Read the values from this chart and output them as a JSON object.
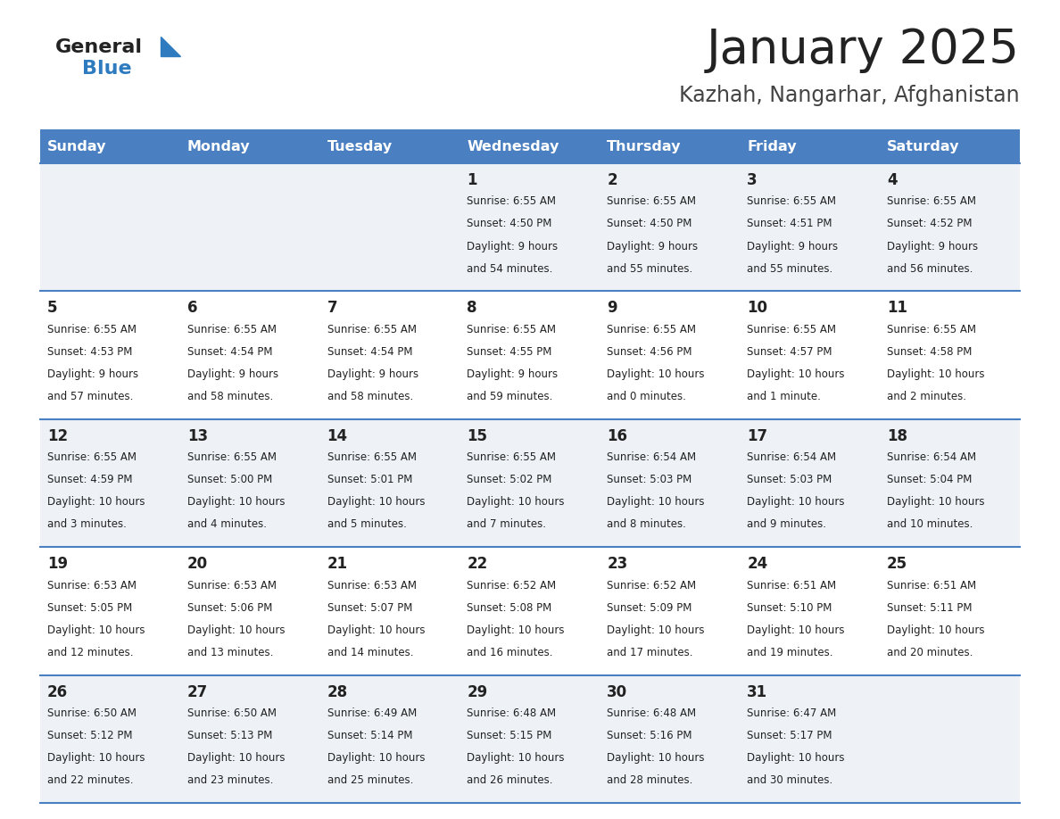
{
  "title": "January 2025",
  "subtitle": "Kazhah, Nangarhar, Afghanistan",
  "days_of_week": [
    "Sunday",
    "Monday",
    "Tuesday",
    "Wednesday",
    "Thursday",
    "Friday",
    "Saturday"
  ],
  "header_bg": "#4a7fc1",
  "header_text": "#ffffff",
  "row_bg_light": "#eef2f7",
  "row_bg_white": "#ffffff",
  "divider_color": "#4a7fc1",
  "title_color": "#222222",
  "subtitle_color": "#444444",
  "cell_text_color": "#222222",
  "day_number_color": "#222222",
  "logo_text_color": "#222222",
  "logo_blue_color": "#2e7bbf",
  "logo_triangle_color": "#2e7bbf",
  "calendar_data": [
    {
      "day": 1,
      "col": 3,
      "row": 0,
      "sunrise": "6:55 AM",
      "sunset": "4:50 PM",
      "daylight_hrs": 9,
      "daylight_min": "54 minutes."
    },
    {
      "day": 2,
      "col": 4,
      "row": 0,
      "sunrise": "6:55 AM",
      "sunset": "4:50 PM",
      "daylight_hrs": 9,
      "daylight_min": "55 minutes."
    },
    {
      "day": 3,
      "col": 5,
      "row": 0,
      "sunrise": "6:55 AM",
      "sunset": "4:51 PM",
      "daylight_hrs": 9,
      "daylight_min": "55 minutes."
    },
    {
      "day": 4,
      "col": 6,
      "row": 0,
      "sunrise": "6:55 AM",
      "sunset": "4:52 PM",
      "daylight_hrs": 9,
      "daylight_min": "56 minutes."
    },
    {
      "day": 5,
      "col": 0,
      "row": 1,
      "sunrise": "6:55 AM",
      "sunset": "4:53 PM",
      "daylight_hrs": 9,
      "daylight_min": "57 minutes."
    },
    {
      "day": 6,
      "col": 1,
      "row": 1,
      "sunrise": "6:55 AM",
      "sunset": "4:54 PM",
      "daylight_hrs": 9,
      "daylight_min": "58 minutes."
    },
    {
      "day": 7,
      "col": 2,
      "row": 1,
      "sunrise": "6:55 AM",
      "sunset": "4:54 PM",
      "daylight_hrs": 9,
      "daylight_min": "58 minutes."
    },
    {
      "day": 8,
      "col": 3,
      "row": 1,
      "sunrise": "6:55 AM",
      "sunset": "4:55 PM",
      "daylight_hrs": 9,
      "daylight_min": "59 minutes."
    },
    {
      "day": 9,
      "col": 4,
      "row": 1,
      "sunrise": "6:55 AM",
      "sunset": "4:56 PM",
      "daylight_hrs": 10,
      "daylight_min": "0 minutes."
    },
    {
      "day": 10,
      "col": 5,
      "row": 1,
      "sunrise": "6:55 AM",
      "sunset": "4:57 PM",
      "daylight_hrs": 10,
      "daylight_min": "1 minute."
    },
    {
      "day": 11,
      "col": 6,
      "row": 1,
      "sunrise": "6:55 AM",
      "sunset": "4:58 PM",
      "daylight_hrs": 10,
      "daylight_min": "2 minutes."
    },
    {
      "day": 12,
      "col": 0,
      "row": 2,
      "sunrise": "6:55 AM",
      "sunset": "4:59 PM",
      "daylight_hrs": 10,
      "daylight_min": "3 minutes."
    },
    {
      "day": 13,
      "col": 1,
      "row": 2,
      "sunrise": "6:55 AM",
      "sunset": "5:00 PM",
      "daylight_hrs": 10,
      "daylight_min": "4 minutes."
    },
    {
      "day": 14,
      "col": 2,
      "row": 2,
      "sunrise": "6:55 AM",
      "sunset": "5:01 PM",
      "daylight_hrs": 10,
      "daylight_min": "5 minutes."
    },
    {
      "day": 15,
      "col": 3,
      "row": 2,
      "sunrise": "6:55 AM",
      "sunset": "5:02 PM",
      "daylight_hrs": 10,
      "daylight_min": "7 minutes."
    },
    {
      "day": 16,
      "col": 4,
      "row": 2,
      "sunrise": "6:54 AM",
      "sunset": "5:03 PM",
      "daylight_hrs": 10,
      "daylight_min": "8 minutes."
    },
    {
      "day": 17,
      "col": 5,
      "row": 2,
      "sunrise": "6:54 AM",
      "sunset": "5:03 PM",
      "daylight_hrs": 10,
      "daylight_min": "9 minutes."
    },
    {
      "day": 18,
      "col": 6,
      "row": 2,
      "sunrise": "6:54 AM",
      "sunset": "5:04 PM",
      "daylight_hrs": 10,
      "daylight_min": "10 minutes."
    },
    {
      "day": 19,
      "col": 0,
      "row": 3,
      "sunrise": "6:53 AM",
      "sunset": "5:05 PM",
      "daylight_hrs": 10,
      "daylight_min": "12 minutes."
    },
    {
      "day": 20,
      "col": 1,
      "row": 3,
      "sunrise": "6:53 AM",
      "sunset": "5:06 PM",
      "daylight_hrs": 10,
      "daylight_min": "13 minutes."
    },
    {
      "day": 21,
      "col": 2,
      "row": 3,
      "sunrise": "6:53 AM",
      "sunset": "5:07 PM",
      "daylight_hrs": 10,
      "daylight_min": "14 minutes."
    },
    {
      "day": 22,
      "col": 3,
      "row": 3,
      "sunrise": "6:52 AM",
      "sunset": "5:08 PM",
      "daylight_hrs": 10,
      "daylight_min": "16 minutes."
    },
    {
      "day": 23,
      "col": 4,
      "row": 3,
      "sunrise": "6:52 AM",
      "sunset": "5:09 PM",
      "daylight_hrs": 10,
      "daylight_min": "17 minutes."
    },
    {
      "day": 24,
      "col": 5,
      "row": 3,
      "sunrise": "6:51 AM",
      "sunset": "5:10 PM",
      "daylight_hrs": 10,
      "daylight_min": "19 minutes."
    },
    {
      "day": 25,
      "col": 6,
      "row": 3,
      "sunrise": "6:51 AM",
      "sunset": "5:11 PM",
      "daylight_hrs": 10,
      "daylight_min": "20 minutes."
    },
    {
      "day": 26,
      "col": 0,
      "row": 4,
      "sunrise": "6:50 AM",
      "sunset": "5:12 PM",
      "daylight_hrs": 10,
      "daylight_min": "22 minutes."
    },
    {
      "day": 27,
      "col": 1,
      "row": 4,
      "sunrise": "6:50 AM",
      "sunset": "5:13 PM",
      "daylight_hrs": 10,
      "daylight_min": "23 minutes."
    },
    {
      "day": 28,
      "col": 2,
      "row": 4,
      "sunrise": "6:49 AM",
      "sunset": "5:14 PM",
      "daylight_hrs": 10,
      "daylight_min": "25 minutes."
    },
    {
      "day": 29,
      "col": 3,
      "row": 4,
      "sunrise": "6:48 AM",
      "sunset": "5:15 PM",
      "daylight_hrs": 10,
      "daylight_min": "26 minutes."
    },
    {
      "day": 30,
      "col": 4,
      "row": 4,
      "sunrise": "6:48 AM",
      "sunset": "5:16 PM",
      "daylight_hrs": 10,
      "daylight_min": "28 minutes."
    },
    {
      "day": 31,
      "col": 5,
      "row": 4,
      "sunrise": "6:47 AM",
      "sunset": "5:17 PM",
      "daylight_hrs": 10,
      "daylight_min": "30 minutes."
    }
  ]
}
